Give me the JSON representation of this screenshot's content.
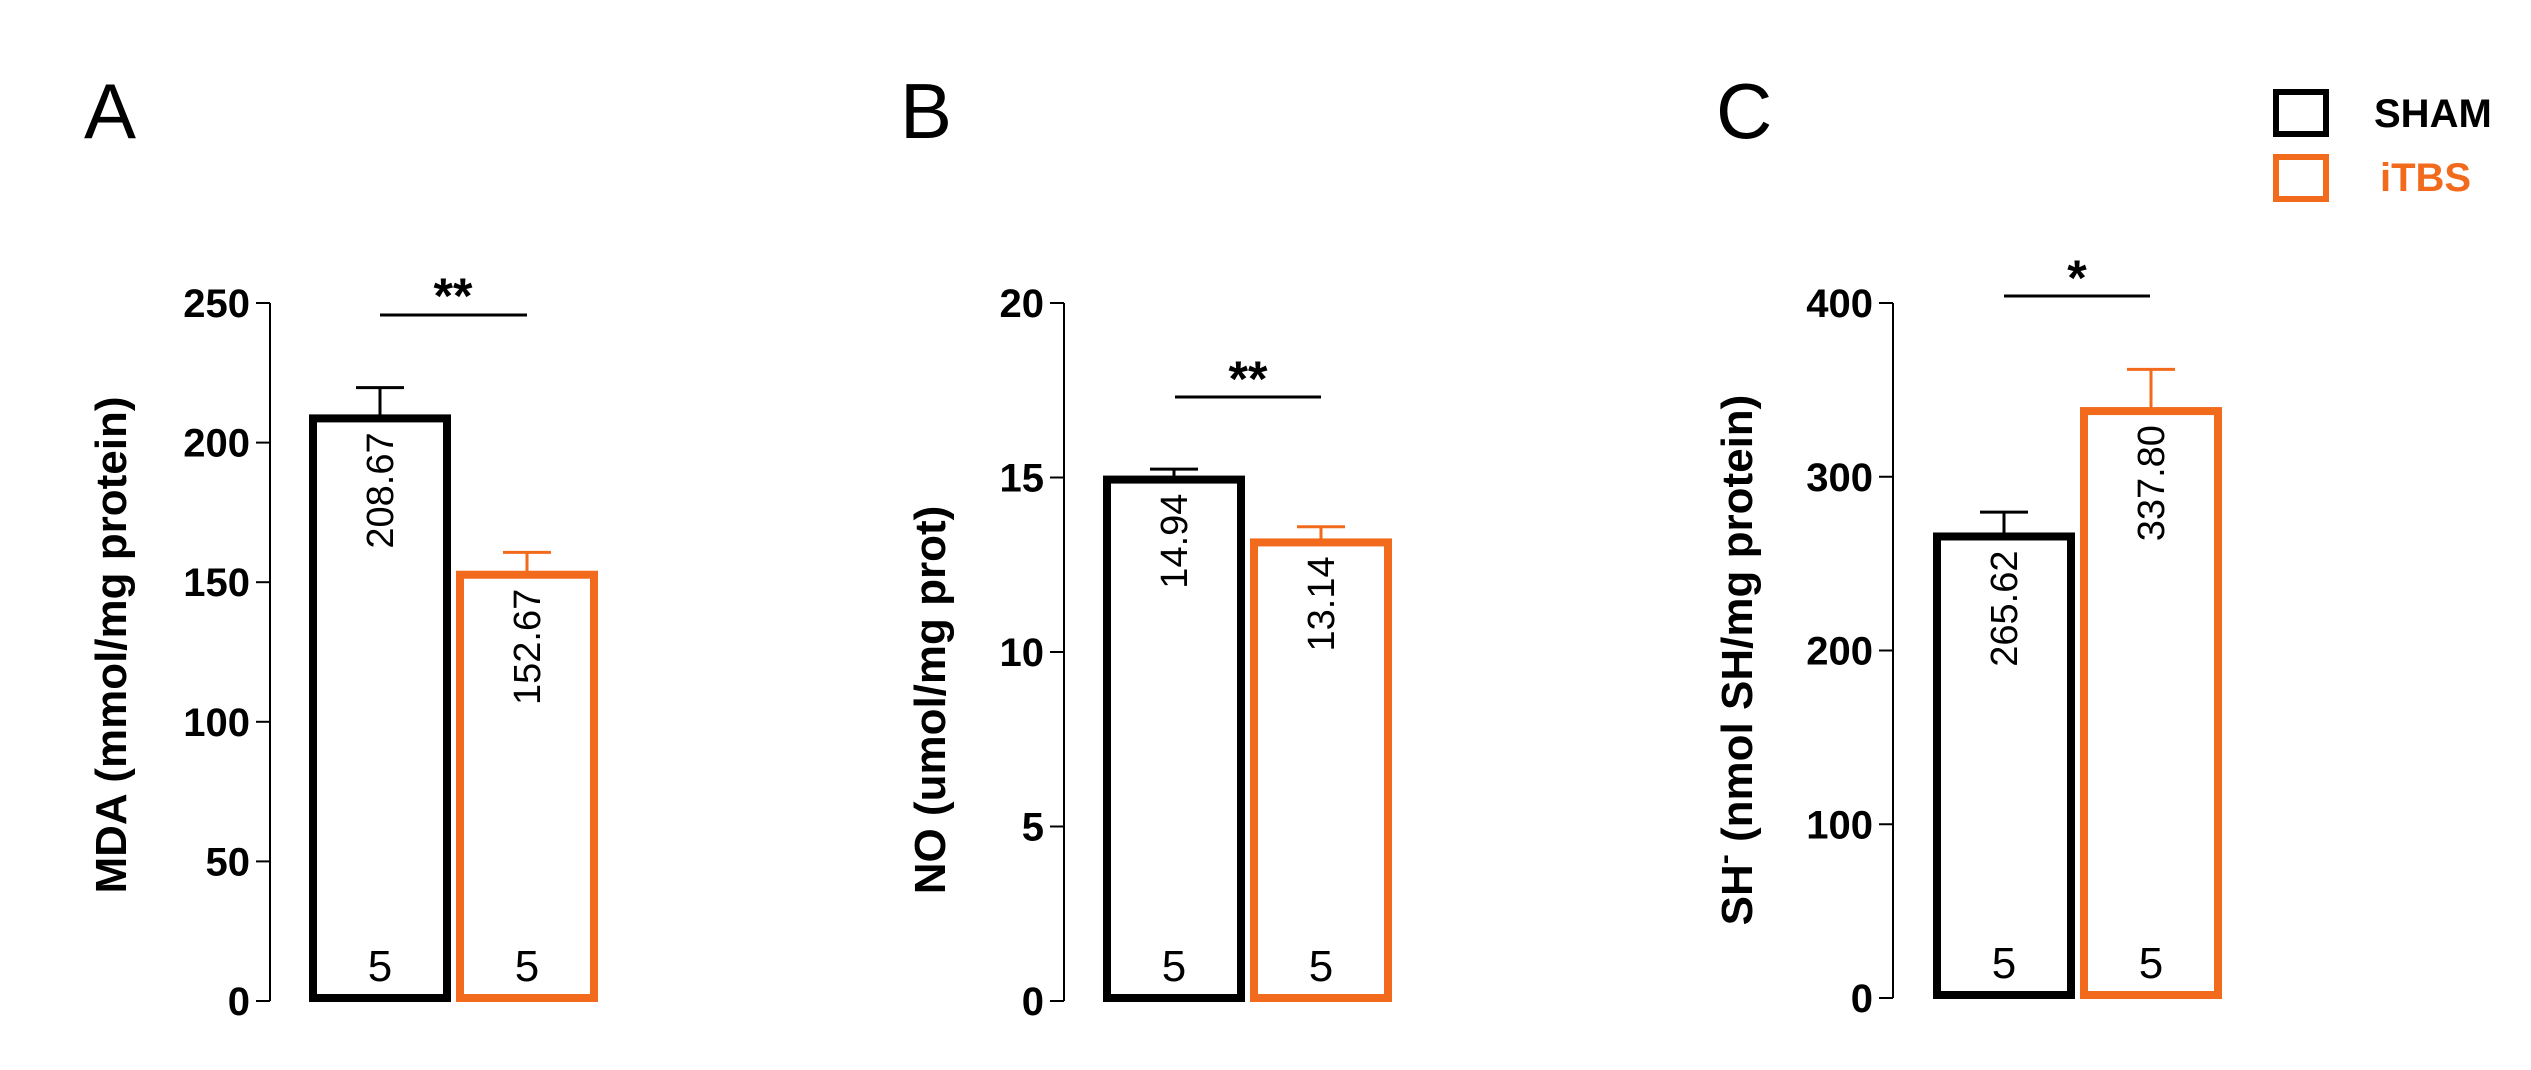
{
  "legend": [
    {
      "name": "SHAM",
      "color": "#000000"
    },
    {
      "name": "iTBS",
      "color": "#f26a1b"
    }
  ],
  "chart_data": [
    {
      "type": "bar",
      "panel": "A",
      "ylabel": "MDA (mmol/mg protein)",
      "ylim": [
        0,
        250
      ],
      "yticks": [
        0,
        50,
        100,
        150,
        200,
        250
      ],
      "categories": [
        "SHAM",
        "iTBS"
      ],
      "values": [
        208.67,
        152.67
      ],
      "value_labels": [
        "208.67",
        "152.67"
      ],
      "errors": [
        11,
        8
      ],
      "n": [
        "5",
        "5"
      ],
      "significance": "**",
      "grid": false
    },
    {
      "type": "bar",
      "panel": "B",
      "ylabel": "NO (umol/mg prot)",
      "ylim": [
        0,
        20
      ],
      "yticks": [
        0,
        5,
        10,
        15,
        20
      ],
      "categories": [
        "SHAM",
        "iTBS"
      ],
      "values": [
        14.94,
        13.14
      ],
      "value_labels": [
        "14.94",
        "13.14"
      ],
      "errors": [
        0.3,
        0.45
      ],
      "n": [
        "5",
        "5"
      ],
      "significance": "**",
      "grid": false
    },
    {
      "type": "bar",
      "panel": "C",
      "ylabel_main": "SH",
      "ylabel_sup": "-",
      "ylabel_rest": " (nmol SH/mg protein)",
      "ylim": [
        0,
        400
      ],
      "yticks": [
        0,
        100,
        200,
        300,
        400
      ],
      "categories": [
        "SHAM",
        "iTBS"
      ],
      "values": [
        265.62,
        337.8
      ],
      "value_labels": [
        "265.62",
        "337.80"
      ],
      "errors": [
        14,
        24
      ],
      "n": [
        "5",
        "5"
      ],
      "significance": "*",
      "grid": false
    }
  ]
}
